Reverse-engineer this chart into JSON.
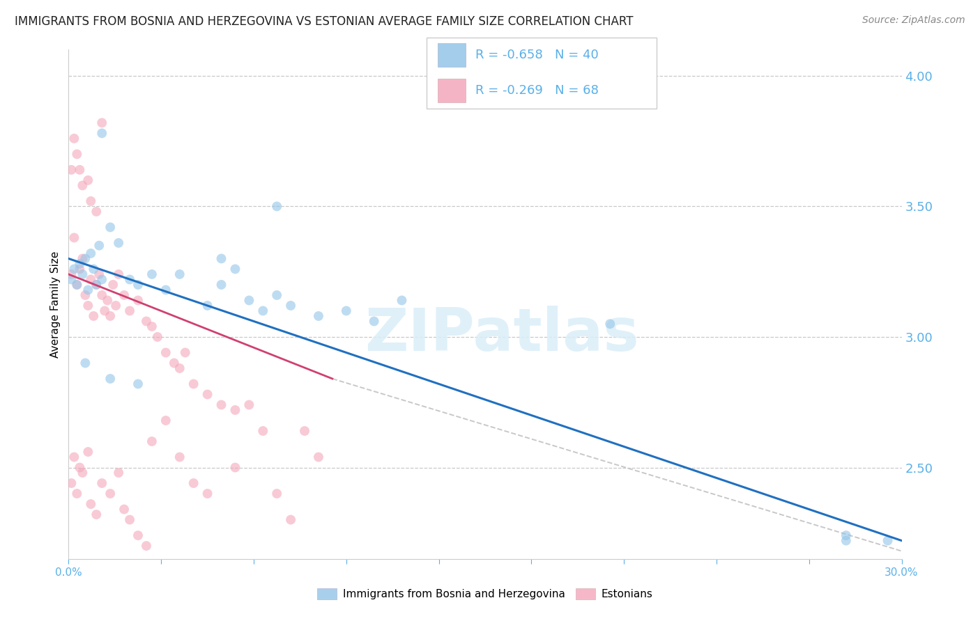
{
  "title": "IMMIGRANTS FROM BOSNIA AND HERZEGOVINA VS ESTONIAN AVERAGE FAMILY SIZE CORRELATION CHART",
  "source": "Source: ZipAtlas.com",
  "ylabel": "Average Family Size",
  "right_yticks": [
    4.0,
    3.5,
    3.0,
    2.5
  ],
  "xlim": [
    0.0,
    0.3
  ],
  "ylim": [
    2.15,
    4.1
  ],
  "legend_r1": "R = -0.658",
  "legend_n1": "N = 40",
  "legend_r2": "R = -0.269",
  "legend_n2": "N = 68",
  "blue_color": "#93c5e8",
  "pink_color": "#f4a7bc",
  "line_blue": "#2070c0",
  "line_pink": "#d04070",
  "line_gray": "#c8c8c8",
  "right_axis_color": "#5ab0e8",
  "background_color": "#ffffff",
  "grid_color": "#c8c8c8",
  "blue_scatter": [
    [
      0.001,
      3.22
    ],
    [
      0.002,
      3.26
    ],
    [
      0.003,
      3.2
    ],
    [
      0.004,
      3.28
    ],
    [
      0.005,
      3.24
    ],
    [
      0.006,
      3.3
    ],
    [
      0.007,
      3.18
    ],
    [
      0.008,
      3.32
    ],
    [
      0.009,
      3.26
    ],
    [
      0.01,
      3.2
    ],
    [
      0.011,
      3.35
    ],
    [
      0.012,
      3.22
    ],
    [
      0.015,
      3.42
    ],
    [
      0.018,
      3.36
    ],
    [
      0.022,
      3.22
    ],
    [
      0.025,
      3.2
    ],
    [
      0.03,
      3.24
    ],
    [
      0.035,
      3.18
    ],
    [
      0.04,
      3.24
    ],
    [
      0.05,
      3.12
    ],
    [
      0.055,
      3.2
    ],
    [
      0.06,
      3.26
    ],
    [
      0.065,
      3.14
    ],
    [
      0.07,
      3.1
    ],
    [
      0.075,
      3.16
    ],
    [
      0.08,
      3.12
    ],
    [
      0.09,
      3.08
    ],
    [
      0.1,
      3.1
    ],
    [
      0.11,
      3.06
    ],
    [
      0.12,
      3.14
    ],
    [
      0.006,
      2.9
    ],
    [
      0.015,
      2.84
    ],
    [
      0.025,
      2.82
    ],
    [
      0.28,
      2.22
    ],
    [
      0.295,
      2.22
    ],
    [
      0.012,
      3.78
    ],
    [
      0.055,
      3.3
    ],
    [
      0.075,
      3.5
    ],
    [
      0.195,
      3.05
    ],
    [
      0.28,
      2.24
    ]
  ],
  "pink_scatter": [
    [
      0.001,
      3.24
    ],
    [
      0.002,
      3.38
    ],
    [
      0.003,
      3.2
    ],
    [
      0.004,
      3.26
    ],
    [
      0.005,
      3.3
    ],
    [
      0.006,
      3.16
    ],
    [
      0.007,
      3.12
    ],
    [
      0.008,
      3.22
    ],
    [
      0.009,
      3.08
    ],
    [
      0.01,
      3.2
    ],
    [
      0.011,
      3.24
    ],
    [
      0.012,
      3.16
    ],
    [
      0.013,
      3.1
    ],
    [
      0.014,
      3.14
    ],
    [
      0.015,
      3.08
    ],
    [
      0.016,
      3.2
    ],
    [
      0.017,
      3.12
    ],
    [
      0.018,
      3.24
    ],
    [
      0.02,
      3.16
    ],
    [
      0.022,
      3.1
    ],
    [
      0.025,
      3.14
    ],
    [
      0.028,
      3.06
    ],
    [
      0.03,
      3.04
    ],
    [
      0.032,
      3.0
    ],
    [
      0.035,
      2.94
    ],
    [
      0.038,
      2.9
    ],
    [
      0.04,
      2.88
    ],
    [
      0.042,
      2.94
    ],
    [
      0.045,
      2.82
    ],
    [
      0.05,
      2.78
    ],
    [
      0.055,
      2.74
    ],
    [
      0.06,
      2.72
    ],
    [
      0.001,
      3.64
    ],
    [
      0.003,
      3.7
    ],
    [
      0.005,
      3.58
    ],
    [
      0.008,
      3.52
    ],
    [
      0.01,
      3.48
    ],
    [
      0.002,
      3.76
    ],
    [
      0.004,
      3.64
    ],
    [
      0.007,
      3.6
    ],
    [
      0.012,
      3.82
    ],
    [
      0.001,
      2.44
    ],
    [
      0.003,
      2.4
    ],
    [
      0.005,
      2.48
    ],
    [
      0.008,
      2.36
    ],
    [
      0.01,
      2.32
    ],
    [
      0.002,
      2.54
    ],
    [
      0.004,
      2.5
    ],
    [
      0.007,
      2.56
    ],
    [
      0.012,
      2.44
    ],
    [
      0.015,
      2.4
    ],
    [
      0.018,
      2.48
    ],
    [
      0.02,
      2.34
    ],
    [
      0.022,
      2.3
    ],
    [
      0.025,
      2.24
    ],
    [
      0.028,
      2.2
    ],
    [
      0.03,
      2.6
    ],
    [
      0.035,
      2.68
    ],
    [
      0.04,
      2.54
    ],
    [
      0.045,
      2.44
    ],
    [
      0.05,
      2.4
    ],
    [
      0.06,
      2.5
    ],
    [
      0.065,
      2.74
    ],
    [
      0.07,
      2.64
    ],
    [
      0.075,
      2.4
    ],
    [
      0.08,
      2.3
    ],
    [
      0.085,
      2.64
    ],
    [
      0.09,
      2.54
    ]
  ],
  "blue_trendline_x": [
    0.0,
    0.3
  ],
  "blue_trendline_y": [
    3.3,
    2.22
  ],
  "pink_trendline_x": [
    0.0,
    0.095
  ],
  "pink_trendline_y": [
    3.24,
    2.84
  ],
  "gray_trendline_x": [
    0.095,
    0.3
  ],
  "gray_trendline_y": [
    2.84,
    2.18
  ],
  "title_fontsize": 12,
  "source_fontsize": 10,
  "axis_label_fontsize": 11,
  "tick_fontsize": 11,
  "legend_fontsize": 13,
  "marker_size": 100
}
